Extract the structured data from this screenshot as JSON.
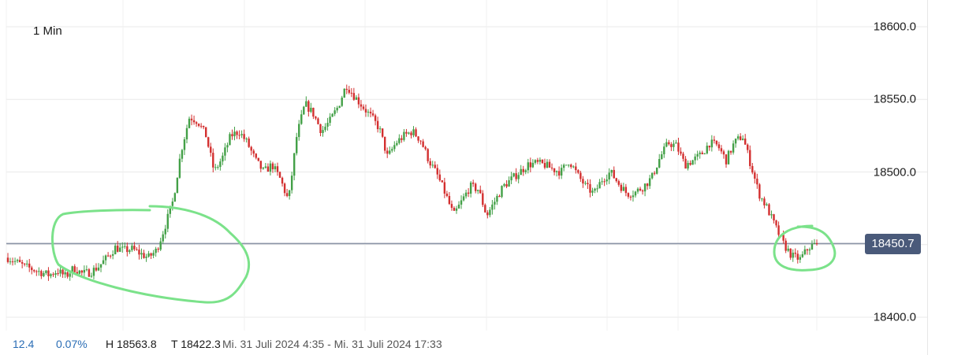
{
  "interval_label": "1 Min",
  "current_price_label": "18450.7",
  "footer": {
    "change_abs": "12.4",
    "change_pct": "0.07%",
    "high_label": "H 18563.8",
    "low_label": "T 18422.3",
    "range_label": "Mi. 31 Juli 2024 4:35 - Mi. 31 Juli 2024 17:33"
  },
  "colors": {
    "up": "#43a047",
    "down": "#d32f2f",
    "price_line": "#8a93a6",
    "badge": "#4a5a7a",
    "annotation": "#7be28a",
    "change": "#2a6db5"
  },
  "chart_data": {
    "type": "candlestick",
    "interval": "1 Min",
    "x_range": [
      "Mi. 31 Juli 2024 4:35",
      "Mi. 31 Juli 2024 17:33"
    ],
    "ylim": [
      18400,
      18600
    ],
    "y_ticks": [
      "18400.0",
      "18450.0",
      "18500.0",
      "18550.0",
      "18600.0"
    ],
    "current_price": 18450.7,
    "high": 18563.8,
    "low": 18422.3,
    "grid": true,
    "close_path": [
      18441,
      18438,
      18435,
      18433,
      18431,
      18429,
      18432,
      18428,
      18434,
      18430,
      18431,
      18435,
      18441,
      18448,
      18446,
      18447,
      18444,
      18441,
      18446,
      18462,
      18480,
      18515,
      18538,
      18535,
      18525,
      18500,
      18510,
      18525,
      18528,
      18520,
      18508,
      18500,
      18505,
      18495,
      18480,
      18525,
      18547,
      18540,
      18528,
      18535,
      18545,
      18560,
      18552,
      18545,
      18538,
      18530,
      18510,
      18520,
      18525,
      18528,
      18522,
      18508,
      18498,
      18485,
      18470,
      18480,
      18490,
      18488,
      18470,
      18480,
      18490,
      18495,
      18500,
      18505,
      18506,
      18505,
      18502,
      18500,
      18508,
      18498,
      18490,
      18485,
      18495,
      18500,
      18492,
      18485,
      18486,
      18490,
      18496,
      18510,
      18520,
      18518,
      18505,
      18508,
      18512,
      18520,
      18518,
      18508,
      18520,
      18525,
      18505,
      18485,
      18475,
      18462,
      18450,
      18442,
      18440,
      18448,
      18450.7
    ]
  }
}
